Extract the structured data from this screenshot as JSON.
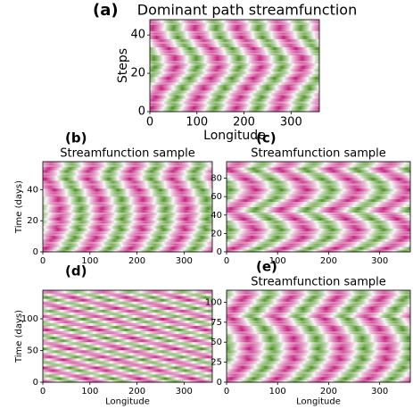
{
  "chart_data": [
    {
      "type": "heatmap",
      "label": "(a)",
      "title": "Dominant path streamfunction",
      "xlabel": "Longitude",
      "ylabel": "Steps",
      "xlim": [
        0,
        360
      ],
      "xticks": [
        0,
        100,
        200,
        300
      ],
      "ylim": [
        0,
        48
      ],
      "yticks": [
        0,
        20,
        40
      ]
    },
    {
      "type": "heatmap",
      "label": "(b)",
      "title": "Streamfunction sample",
      "ylabel": "Time (days)",
      "xlim": [
        0,
        360
      ],
      "xticks": [
        0,
        100,
        200,
        300
      ],
      "ylim": [
        0,
        58
      ],
      "yticks": [
        0,
        20,
        40
      ]
    },
    {
      "type": "heatmap",
      "label": "(c)",
      "title": "Streamfunction sample",
      "xlim": [
        0,
        360
      ],
      "xticks": [
        0,
        100,
        200,
        300
      ],
      "ylim": [
        0,
        98
      ],
      "yticks": [
        0,
        20,
        40,
        60,
        80
      ]
    },
    {
      "type": "heatmap",
      "label": "(d)",
      "xlabel": "Longitude",
      "ylabel": "Time (days)",
      "xlim": [
        0,
        360
      ],
      "xticks": [
        0,
        100,
        200,
        300
      ],
      "ylim": [
        0,
        145
      ],
      "yticks": [
        0,
        50,
        100
      ]
    },
    {
      "type": "heatmap",
      "label": "(e)",
      "title": "Streamfunction sample",
      "xlabel": "Longitude",
      "xlim": [
        0,
        360
      ],
      "xticks": [
        0,
        100,
        200,
        300
      ],
      "ylim": [
        0,
        115
      ],
      "yticks": [
        0,
        25,
        50,
        75,
        100
      ]
    }
  ]
}
